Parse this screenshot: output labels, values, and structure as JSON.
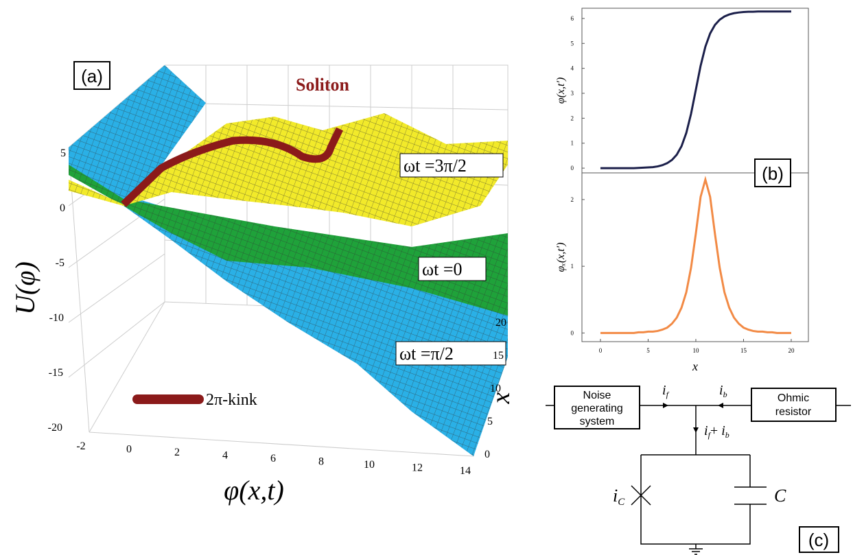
{
  "panel_a": {
    "label": "(a)",
    "title": "Soliton",
    "surface_labels": [
      "ωt =3π/2",
      "ωt =0",
      "ωt =π/2"
    ],
    "legend": "2π-kink",
    "z_label": "U(φ)",
    "x_label": "φ(x,t)",
    "depth_label": "x",
    "z_ticks": [
      5,
      0,
      -5,
      -10,
      -15,
      -20
    ],
    "x_ticks": [
      -2,
      0,
      2,
      4,
      6,
      8,
      10,
      12,
      14
    ],
    "depth_ticks": [
      20,
      15,
      10,
      5,
      0
    ]
  },
  "panel_b": {
    "label": "(b)"
  },
  "chart_data": [
    {
      "type": "line",
      "ylabel": "φ(x,t′)",
      "x": [
        0,
        0.5,
        1,
        1.5,
        2,
        2.5,
        3,
        3.5,
        4,
        4.5,
        5,
        5.5,
        6,
        6.5,
        7,
        7.5,
        8,
        8.5,
        9,
        9.5,
        10,
        10.5,
        11,
        11.5,
        12,
        12.5,
        13,
        13.5,
        14,
        14.5,
        15,
        15.5,
        16,
        16.5,
        17,
        17.5,
        18,
        18.5,
        19,
        19.5,
        20
      ],
      "series": [
        {
          "color": "#1b1f4a",
          "values": [
            0,
            0,
            0,
            0,
            0,
            0,
            0,
            0,
            0.01,
            0.02,
            0.03,
            0.04,
            0.07,
            0.12,
            0.2,
            0.33,
            0.54,
            0.88,
            1.41,
            2.18,
            3.14,
            4.1,
            4.87,
            5.4,
            5.74,
            5.95,
            6.08,
            6.16,
            6.21,
            6.24,
            6.26,
            6.27,
            6.27,
            6.28,
            6.28,
            6.28,
            6.28,
            6.28,
            6.28,
            6.28,
            6.28
          ]
        }
      ],
      "xlim": [
        -1.94,
        21.8
      ],
      "ylim": [
        -0.19,
        6.41
      ],
      "yticks": [
        0,
        1,
        2,
        3,
        4,
        5,
        6
      ]
    },
    {
      "type": "line",
      "xlabel": "x",
      "ylabel": "φₓ(x,t′)",
      "x": [
        0,
        0.5,
        1,
        1.5,
        2,
        2.5,
        3,
        3.5,
        4,
        4.5,
        5,
        5.5,
        6,
        6.5,
        7,
        7.5,
        8,
        8.5,
        9,
        9.5,
        10,
        10.5,
        11,
        11.5,
        12,
        12.5,
        13,
        13.5,
        14,
        14.5,
        15,
        15.5,
        16,
        16.5,
        17,
        17.5,
        18,
        18.5,
        19,
        19.5,
        20
      ],
      "series": [
        {
          "color": "#f28a45",
          "values": [
            0,
            0,
            0,
            0,
            0,
            0,
            0,
            0,
            0.01,
            0.01,
            0.02,
            0.02,
            0.03,
            0.05,
            0.08,
            0.14,
            0.23,
            0.38,
            0.61,
            0.98,
            1.49,
            2.04,
            2.3,
            2.04,
            1.49,
            0.98,
            0.61,
            0.38,
            0.23,
            0.14,
            0.08,
            0.05,
            0.03,
            0.02,
            0.02,
            0.01,
            0.01,
            0,
            0,
            0,
            0
          ]
        }
      ],
      "xlim": [
        -1.94,
        21.8
      ],
      "ylim": [
        -0.13,
        2.4
      ],
      "xticks": [
        0,
        5,
        10,
        15,
        20
      ],
      "yticks": [
        0,
        1,
        2
      ]
    }
  ],
  "panel_c": {
    "label": "(c)",
    "noise_box": [
      "Noise",
      "generating",
      "system"
    ],
    "resistor_box": [
      "Ohmic",
      "resistor"
    ],
    "i_f": {
      "main": "i",
      "sub": "f"
    },
    "i_b": {
      "main": "i",
      "sub": "b"
    },
    "i_sum": {
      "a": "i",
      "a_sub": "f",
      "plus": "+ ",
      "b": "i",
      "b_sub": "b"
    },
    "i_c": {
      "main": "i",
      "sub": "C"
    },
    "capacitor": "C"
  }
}
